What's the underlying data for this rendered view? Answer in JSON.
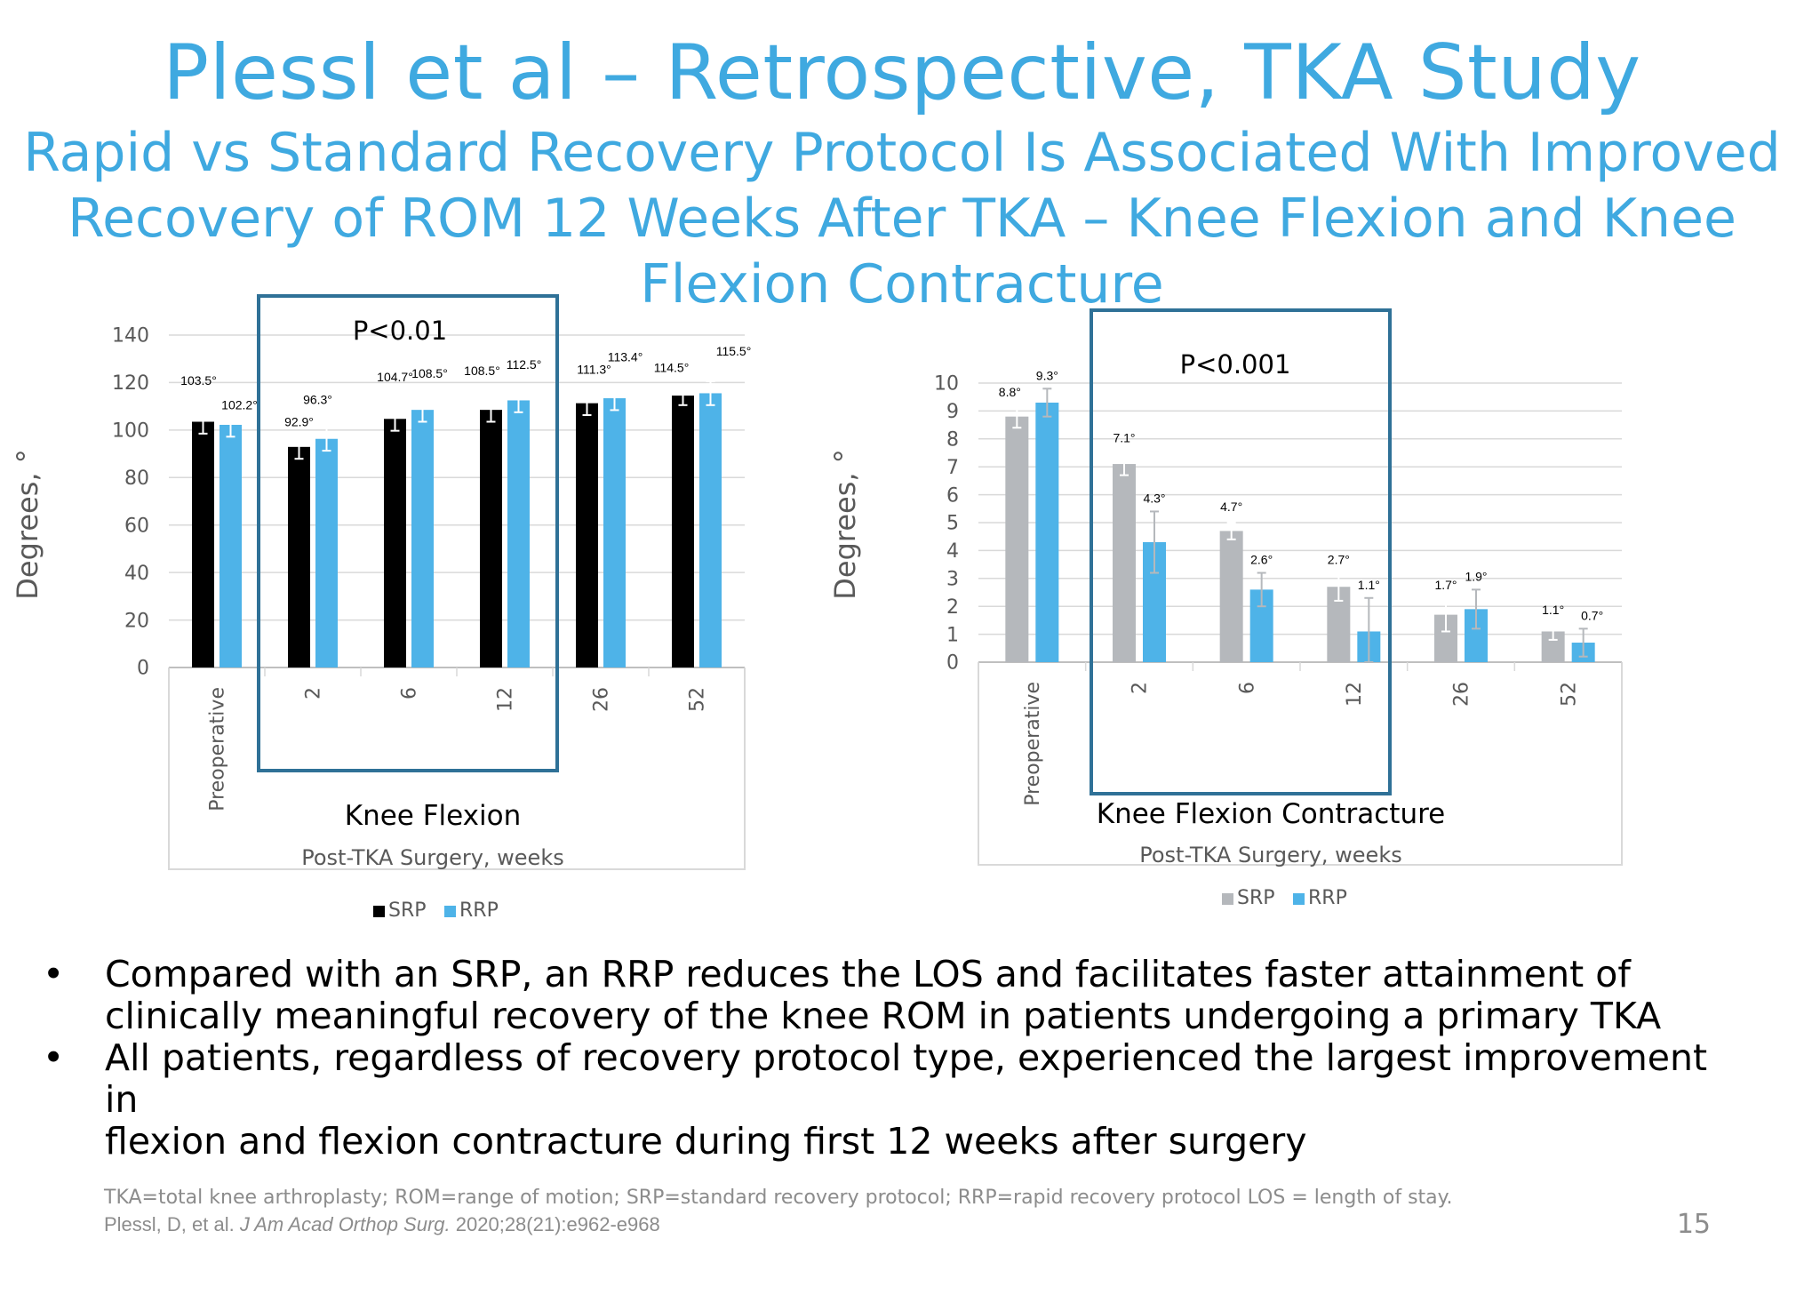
{
  "slide": {
    "title": "Plessl et al – Retrospective, TKA Study",
    "subtitle_lines": [
      "Rapid vs Standard Recovery Protocol Is Associated With Improved",
      "Recovery of ROM 12 Weeks After TKA – Knee Flexion and Knee",
      "Flexion Contracture"
    ],
    "bullets": [
      {
        "marker": "•",
        "lines": [
          "Compared with an SRP, an RRP reduces the LOS and facilitates faster attainment of",
          "clinically meaningful recovery of the knee ROM in patients undergoing a primary TKA"
        ]
      },
      {
        "marker": "•",
        "lines": [
          "All patients, regardless of recovery protocol type, experienced the largest improvement in",
          "flexion and flexion contracture during first 12 weeks after surgery"
        ]
      }
    ],
    "footnote_abbrev": "TKA=total knee arthroplasty; ROM=range of motion; SRP=standard recovery protocol; RRP=rapid recovery protocol  LOS = length of stay.",
    "citation_pre": "Plessl, D, et al. ",
    "citation_journal": "J Am Acad Orthop Surg.",
    "citation_post": " 2020;28(21):e962-e968",
    "page_number": "15"
  },
  "colors": {
    "accent": "#3fa9e0",
    "srp_left": "#000000",
    "srp_right": "#b5b8bc",
    "rrp": "#4eb3e8",
    "box": "#2f7197",
    "grid": "#d9d9d9",
    "axis_text": "#595959"
  },
  "chart_data": [
    {
      "type": "bar",
      "title": "Knee Flexion",
      "xlabel": "Post-TKA Surgery, weeks",
      "ylabel": "Degrees, °",
      "ylim": [
        0,
        140
      ],
      "yticks": [
        0,
        20,
        40,
        60,
        80,
        100,
        120,
        140
      ],
      "categories": [
        "Preoperative",
        "2",
        "6",
        "12",
        "26",
        "52"
      ],
      "series": [
        {
          "name": "SRP",
          "values": [
            103.5,
            92.9,
            104.7,
            108.5,
            111.3,
            114.5
          ],
          "labels": [
            "103.5°",
            "92.9°",
            "104.7°",
            "108.5°",
            "111.3°",
            "114.5°"
          ],
          "error": [
            5,
            5,
            5,
            5,
            5,
            4
          ]
        },
        {
          "name": "RRP",
          "values": [
            102.2,
            96.3,
            108.5,
            112.5,
            113.4,
            115.5
          ],
          "labels": [
            "102.2°",
            "96.3°",
            "108.5°",
            "112.5°",
            "113.4°",
            "115.5°"
          ],
          "error": [
            5,
            5,
            5,
            5,
            5,
            5
          ]
        }
      ],
      "annotation": "P<0.01",
      "highlight_categories": [
        "2",
        "6",
        "12"
      ],
      "legend": "bottom"
    },
    {
      "type": "bar",
      "title": "Knee Flexion Contracture",
      "xlabel": "Post-TKA Surgery, weeks",
      "ylabel": "Degrees, °",
      "ylim": [
        0,
        10
      ],
      "yticks": [
        0,
        1,
        2,
        3,
        4,
        5,
        6,
        7,
        8,
        9,
        10
      ],
      "categories": [
        "Preoperative",
        "2",
        "6",
        "12",
        "26",
        "52"
      ],
      "series": [
        {
          "name": "SRP",
          "values": [
            8.8,
            7.1,
            4.7,
            2.7,
            1.7,
            1.1
          ],
          "labels": [
            "8.8°",
            "7.1°",
            "4.7°",
            "2.7°",
            "1.7°",
            "1.1°"
          ],
          "error": [
            0.4,
            0.4,
            0.3,
            0.5,
            0.6,
            0.3
          ]
        },
        {
          "name": "RRP",
          "values": [
            9.3,
            4.3,
            2.6,
            1.1,
            1.9,
            0.7
          ],
          "labels": [
            "9.3°",
            "4.3°",
            "2.6°",
            "1.1°",
            "1.9°",
            "0.7°"
          ],
          "error": [
            0.5,
            1.1,
            0.6,
            1.2,
            0.7,
            0.5
          ]
        }
      ],
      "annotation": "P<0.001",
      "highlight_categories": [
        "2",
        "6",
        "12"
      ],
      "legend": "bottom"
    }
  ]
}
